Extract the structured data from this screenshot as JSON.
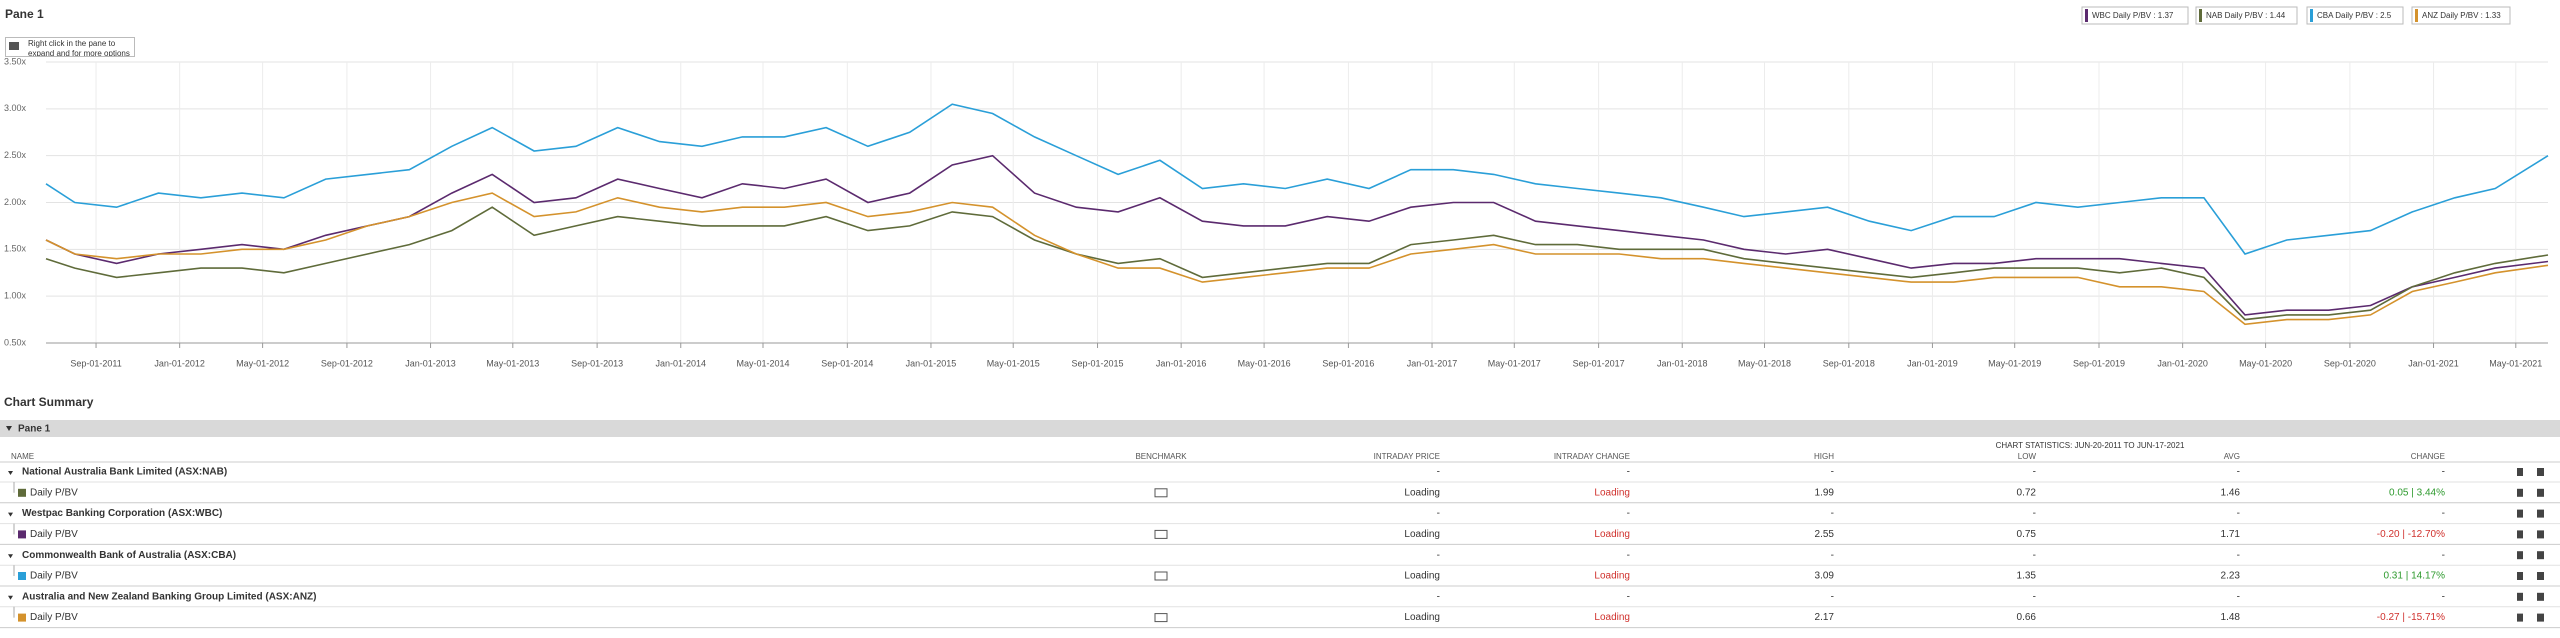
{
  "header": {
    "title": "Pane 1",
    "hint": "Right click in the pane to expand and for more options"
  },
  "chart_data": {
    "type": "line",
    "x": [
      "Jun-20-2011",
      "Aug-01-2011",
      "Oct-01-2011",
      "Dec-01-2011",
      "Feb-01-2012",
      "Apr-01-2012",
      "Jun-01-2012",
      "Aug-01-2012",
      "Oct-01-2012",
      "Dec-01-2012",
      "Feb-01-2013",
      "Apr-01-2013",
      "Jun-01-2013",
      "Aug-01-2013",
      "Oct-01-2013",
      "Dec-01-2013",
      "Feb-01-2014",
      "Apr-01-2014",
      "Jun-01-2014",
      "Aug-01-2014",
      "Oct-01-2014",
      "Dec-01-2014",
      "Feb-01-2015",
      "Apr-01-2015",
      "Jun-01-2015",
      "Aug-01-2015",
      "Oct-01-2015",
      "Dec-01-2015",
      "Feb-01-2016",
      "Apr-01-2016",
      "Jun-01-2016",
      "Aug-01-2016",
      "Oct-01-2016",
      "Dec-01-2016",
      "Feb-01-2017",
      "Apr-01-2017",
      "Jun-01-2017",
      "Aug-01-2017",
      "Oct-01-2017",
      "Dec-01-2017",
      "Feb-01-2018",
      "Apr-01-2018",
      "Jun-01-2018",
      "Aug-01-2018",
      "Oct-01-2018",
      "Dec-01-2018",
      "Feb-01-2019",
      "Apr-01-2019",
      "Jun-01-2019",
      "Aug-01-2019",
      "Oct-01-2019",
      "Dec-01-2019",
      "Feb-01-2020",
      "Apr-01-2020",
      "Jun-01-2020",
      "Aug-01-2020",
      "Oct-01-2020",
      "Dec-01-2020",
      "Feb-01-2021",
      "Apr-01-2021",
      "Jun-17-2021"
    ],
    "xlim": [
      "Jun-20-2011",
      "Jun-17-2021"
    ],
    "xticks": [
      "Sep-01-2011",
      "Jan-01-2012",
      "May-01-2012",
      "Sep-01-2012",
      "Jan-01-2013",
      "May-01-2013",
      "Sep-01-2013",
      "Jan-01-2014",
      "May-01-2014",
      "Sep-01-2014",
      "Jan-01-2015",
      "May-01-2015",
      "Sep-01-2015",
      "Jan-01-2016",
      "May-01-2016",
      "Sep-01-2016",
      "Jan-01-2017",
      "May-01-2017",
      "Sep-01-2017",
      "Jan-01-2018",
      "May-01-2018",
      "Sep-01-2018",
      "Jan-01-2019",
      "May-01-2019",
      "Sep-01-2019",
      "Jan-01-2020",
      "May-01-2020",
      "Sep-01-2020",
      "Jan-01-2021",
      "May-01-2021"
    ],
    "ylim": [
      0.5,
      3.5
    ],
    "yticks": [
      {
        "value": 0.5,
        "label": "0.50x"
      },
      {
        "value": 1,
        "label": "1.00x"
      },
      {
        "value": 1.5,
        "label": "1.50x"
      },
      {
        "value": 2,
        "label": "2.00x"
      },
      {
        "value": 2.5,
        "label": "2.50x"
      },
      {
        "value": 3,
        "label": "3.00x"
      },
      {
        "value": 3.5,
        "label": "3.50x"
      }
    ],
    "grid": true,
    "series": [
      {
        "name": "WBC Daily P/BV : 1.37",
        "color": "#5b2a6e",
        "values": [
          1.6,
          1.45,
          1.35,
          1.45,
          1.5,
          1.55,
          1.5,
          1.65,
          1.75,
          1.85,
          2.1,
          2.3,
          2.0,
          2.05,
          2.25,
          2.15,
          2.05,
          2.2,
          2.15,
          2.25,
          2.0,
          2.1,
          2.4,
          2.5,
          2.1,
          1.95,
          1.9,
          2.05,
          1.8,
          1.75,
          1.75,
          1.85,
          1.8,
          1.95,
          2.0,
          2.0,
          1.8,
          1.75,
          1.7,
          1.65,
          1.6,
          1.5,
          1.45,
          1.5,
          1.4,
          1.3,
          1.35,
          1.35,
          1.4,
          1.4,
          1.4,
          1.35,
          1.3,
          0.8,
          0.85,
          0.85,
          0.9,
          1.1,
          1.2,
          1.3,
          1.37
        ]
      },
      {
        "name": "NAB Daily P/BV : 1.44",
        "color": "#5f6b3a",
        "values": [
          1.4,
          1.3,
          1.2,
          1.25,
          1.3,
          1.3,
          1.25,
          1.35,
          1.45,
          1.55,
          1.7,
          1.95,
          1.65,
          1.75,
          1.85,
          1.8,
          1.75,
          1.75,
          1.75,
          1.85,
          1.7,
          1.75,
          1.9,
          1.85,
          1.6,
          1.45,
          1.35,
          1.4,
          1.2,
          1.25,
          1.3,
          1.35,
          1.35,
          1.55,
          1.6,
          1.65,
          1.55,
          1.55,
          1.5,
          1.5,
          1.5,
          1.4,
          1.35,
          1.3,
          1.25,
          1.2,
          1.25,
          1.3,
          1.3,
          1.3,
          1.25,
          1.3,
          1.2,
          0.75,
          0.8,
          0.8,
          0.85,
          1.1,
          1.25,
          1.35,
          1.44
        ]
      },
      {
        "name": "CBA Daily P/BV : 2.5",
        "color": "#2a9fd8",
        "values": [
          2.2,
          2.0,
          1.95,
          2.1,
          2.05,
          2.1,
          2.05,
          2.25,
          2.3,
          2.35,
          2.6,
          2.8,
          2.55,
          2.6,
          2.8,
          2.65,
          2.6,
          2.7,
          2.7,
          2.8,
          2.6,
          2.75,
          3.05,
          2.95,
          2.7,
          2.5,
          2.3,
          2.45,
          2.15,
          2.2,
          2.15,
          2.25,
          2.15,
          2.35,
          2.35,
          2.3,
          2.2,
          2.15,
          2.1,
          2.05,
          1.95,
          1.85,
          1.9,
          1.95,
          1.8,
          1.7,
          1.85,
          1.85,
          2.0,
          1.95,
          2.0,
          2.05,
          2.05,
          1.45,
          1.6,
          1.65,
          1.7,
          1.9,
          2.05,
          2.15,
          2.5
        ]
      },
      {
        "name": "ANZ Daily P/BV : 1.33",
        "color": "#d4922c",
        "values": [
          1.6,
          1.45,
          1.4,
          1.45,
          1.45,
          1.5,
          1.5,
          1.6,
          1.75,
          1.85,
          2.0,
          2.1,
          1.85,
          1.9,
          2.05,
          1.95,
          1.9,
          1.95,
          1.95,
          2.0,
          1.85,
          1.9,
          2.0,
          1.95,
          1.65,
          1.45,
          1.3,
          1.3,
          1.15,
          1.2,
          1.25,
          1.3,
          1.3,
          1.45,
          1.5,
          1.55,
          1.45,
          1.45,
          1.45,
          1.4,
          1.4,
          1.35,
          1.3,
          1.25,
          1.2,
          1.15,
          1.15,
          1.2,
          1.2,
          1.2,
          1.1,
          1.1,
          1.05,
          0.7,
          0.75,
          0.75,
          0.8,
          1.05,
          1.15,
          1.25,
          1.33
        ]
      }
    ]
  },
  "summary": {
    "title": "Chart Summary",
    "pane": "Pane 1",
    "stats_header": "CHART STATISTICS: JUN-20-2011 TO JUN-17-2021",
    "columns": [
      "NAME",
      "BENCHMARK",
      "INTRADAY PRICE",
      "INTRADAY CHANGE",
      "HIGH",
      "LOW",
      "AVG",
      "CHANGE"
    ],
    "groups": [
      {
        "name": "National Australia Bank Limited (ASX:NAB)",
        "cells": [
          "-",
          "-",
          "-",
          "-",
          "-",
          "-"
        ],
        "color": "#5f6b3a",
        "row": [
          "Daily P/BV",
          "Loading",
          "Loading",
          "1.99",
          "0.72",
          "1.46",
          "0.05 | 3.44%"
        ]
      },
      {
        "name": "Westpac Banking Corporation (ASX:WBC)",
        "cells": [
          "-",
          "-",
          "-",
          "-",
          "-",
          "-"
        ],
        "color": "#5b2a6e",
        "row": [
          "Daily P/BV",
          "Loading",
          "Loading",
          "2.55",
          "0.75",
          "1.71",
          "-0.20 | -12.70%"
        ]
      },
      {
        "name": "Commonwealth Bank of Australia (ASX:CBA)",
        "cells": [
          "-",
          "-",
          "-",
          "-",
          "-",
          "-"
        ],
        "color": "#2a9fd8",
        "row": [
          "Daily P/BV",
          "Loading",
          "Loading",
          "3.09",
          "1.35",
          "2.23",
          "0.31 | 14.17%"
        ]
      },
      {
        "name": "Australia and New Zealand Banking Group Limited (ASX:ANZ)",
        "cells": [
          "-",
          "-",
          "-",
          "-",
          "-",
          "-"
        ],
        "color": "#d4922c",
        "row": [
          "Daily P/BV",
          "Loading",
          "Loading",
          "2.17",
          "0.66",
          "1.48",
          "-0.27 | -15.71%"
        ]
      }
    ]
  }
}
